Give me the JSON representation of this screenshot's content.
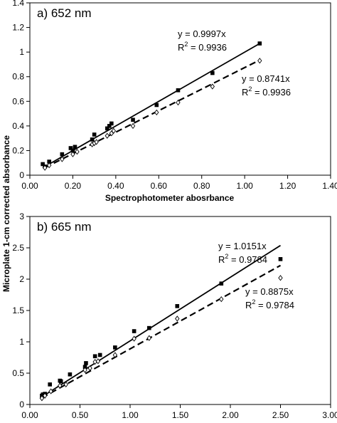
{
  "ylabel": "Microplate 1-cm corrected absorbance",
  "chart_data": [
    {
      "type": "scatter",
      "title": "a) 652 nm",
      "xlabel": "Spectrophotometer abosrbance",
      "ylabel": "Microplate 1-cm corrected absorbance",
      "xlim": [
        0,
        1.4
      ],
      "ylim": [
        0,
        1.4
      ],
      "x_ticks": [
        "0.00",
        "0.20",
        "0.40",
        "0.60",
        "0.80",
        "1.00",
        "1.20",
        "1.40"
      ],
      "y_ticks": [
        "0",
        "0.2",
        "0.4",
        "0.6",
        "0.8",
        "1",
        "1.2",
        "1.4"
      ],
      "grid": false,
      "series": [
        {
          "marker": "filled-square",
          "line": "solid",
          "slope": 0.9997,
          "equation": "y = 0.9997x",
          "r2_label": "R",
          "r2_value": " = 0.9936",
          "points": [
            [
              0.06,
              0.09
            ],
            [
              0.07,
              0.07
            ],
            [
              0.09,
              0.11
            ],
            [
              0.15,
              0.17
            ],
            [
              0.19,
              0.22
            ],
            [
              0.2,
              0.2
            ],
            [
              0.21,
              0.23
            ],
            [
              0.29,
              0.29
            ],
            [
              0.3,
              0.33
            ],
            [
              0.36,
              0.38
            ],
            [
              0.37,
              0.4
            ],
            [
              0.38,
              0.42
            ],
            [
              0.48,
              0.45
            ],
            [
              0.59,
              0.57
            ],
            [
              0.69,
              0.69
            ],
            [
              0.85,
              0.83
            ],
            [
              1.07,
              1.07
            ]
          ]
        },
        {
          "marker": "open-diamond",
          "line": "dashed",
          "slope": 0.8741,
          "equation": "y = 0.8741x",
          "r2_label": "R",
          "r2_value": " = 0.9936",
          "points": [
            [
              0.07,
              0.06
            ],
            [
              0.09,
              0.08
            ],
            [
              0.15,
              0.13
            ],
            [
              0.2,
              0.17
            ],
            [
              0.22,
              0.19
            ],
            [
              0.29,
              0.25
            ],
            [
              0.3,
              0.26
            ],
            [
              0.31,
              0.27
            ],
            [
              0.36,
              0.32
            ],
            [
              0.38,
              0.34
            ],
            [
              0.39,
              0.36
            ],
            [
              0.48,
              0.4
            ],
            [
              0.59,
              0.51
            ],
            [
              0.69,
              0.59
            ],
            [
              0.85,
              0.72
            ],
            [
              1.07,
              0.93
            ]
          ]
        }
      ]
    },
    {
      "type": "scatter",
      "title": "b) 665 nm",
      "xlabel": "Spectrophotometer abosrbance",
      "ylabel": "Microplate 1-cm corrected absorbance",
      "xlim": [
        0,
        3
      ],
      "ylim": [
        0,
        3
      ],
      "x_ticks": [
        "0.00",
        "0.50",
        "1.00",
        "1.50",
        "2.00",
        "2.50",
        "3.00"
      ],
      "y_ticks": [
        "0",
        "0.5",
        "1",
        "1.5",
        "2",
        "2.5",
        "3"
      ],
      "grid": false,
      "series": [
        {
          "marker": "filled-square",
          "line": "solid",
          "slope": 1.0151,
          "equation": "y = 1.0151x",
          "r2_label": "R",
          "r2_value": " = 0.9784",
          "points": [
            [
              0.12,
              0.14
            ],
            [
              0.13,
              0.16
            ],
            [
              0.15,
              0.17
            ],
            [
              0.2,
              0.32
            ],
            [
              0.3,
              0.38
            ],
            [
              0.31,
              0.37
            ],
            [
              0.4,
              0.48
            ],
            [
              0.55,
              0.6
            ],
            [
              0.56,
              0.66
            ],
            [
              0.65,
              0.77
            ],
            [
              0.7,
              0.79
            ],
            [
              0.85,
              0.91
            ],
            [
              1.04,
              1.17
            ],
            [
              1.19,
              1.22
            ],
            [
              1.47,
              1.57
            ],
            [
              1.91,
              1.93
            ],
            [
              2.5,
              2.32
            ]
          ]
        },
        {
          "marker": "open-diamond",
          "line": "dashed",
          "slope": 0.8875,
          "equation": "y = 0.8875x",
          "r2_label": "R",
          "r2_value": " = 0.9784",
          "points": [
            [
              0.12,
              0.1
            ],
            [
              0.15,
              0.14
            ],
            [
              0.21,
              0.21
            ],
            [
              0.3,
              0.3
            ],
            [
              0.36,
              0.32
            ],
            [
              0.55,
              0.55
            ],
            [
              0.6,
              0.58
            ],
            [
              0.65,
              0.68
            ],
            [
              0.68,
              0.69
            ],
            [
              0.85,
              0.79
            ],
            [
              1.04,
              1.05
            ],
            [
              1.19,
              1.06
            ],
            [
              1.47,
              1.37
            ],
            [
              1.91,
              1.68
            ],
            [
              2.5,
              2.02
            ]
          ]
        }
      ]
    }
  ]
}
